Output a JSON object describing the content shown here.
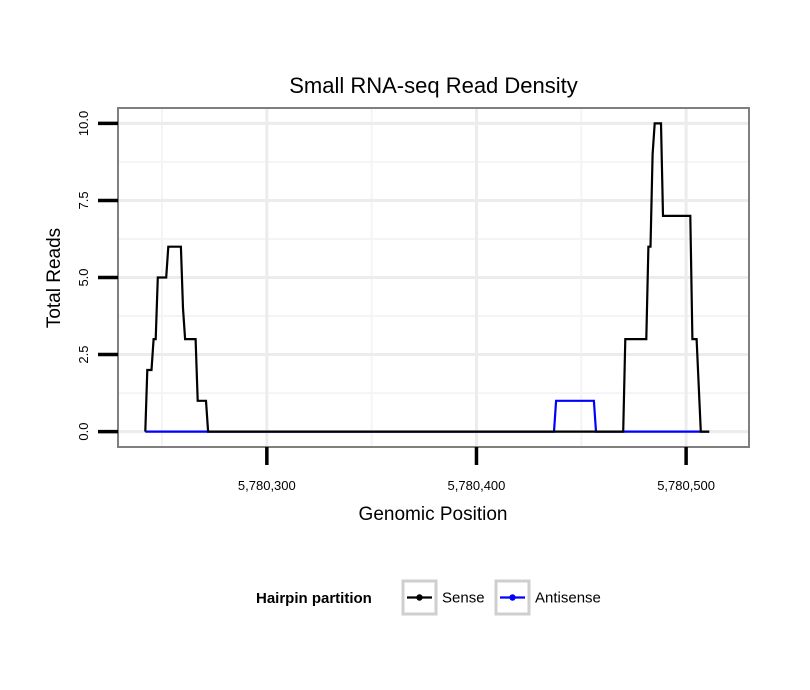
{
  "chart_data": {
    "type": "line",
    "title": "Small RNA-seq Read Density",
    "xlabel": "Genomic Position",
    "ylabel": "Total Reads",
    "xlim": [
      5780229,
      5780530
    ],
    "ylim": [
      -0.5,
      10.5
    ],
    "x_ticks": [
      {
        "value": 5780300,
        "label": "5,780,300"
      },
      {
        "value": 5780400,
        "label": "5,780,400"
      },
      {
        "value": 5780500,
        "label": "5,780,500"
      }
    ],
    "y_ticks": [
      {
        "value": 0,
        "label": "0.0"
      },
      {
        "value": 2.5,
        "label": "2.5"
      },
      {
        "value": 5,
        "label": "5.0"
      },
      {
        "value": 7.5,
        "label": "7.5"
      },
      {
        "value": 10,
        "label": "10.0"
      }
    ],
    "grid": true,
    "legend": {
      "title": "Hairpin partition",
      "position": "bottom"
    },
    "series": [
      {
        "name": "Sense",
        "color": "#000000",
        "points": [
          [
            5780242,
            0
          ],
          [
            5780243,
            2
          ],
          [
            5780245,
            2
          ],
          [
            5780246,
            3
          ],
          [
            5780247,
            3
          ],
          [
            5780248,
            5
          ],
          [
            5780252,
            5
          ],
          [
            5780253,
            6
          ],
          [
            5780259,
            6
          ],
          [
            5780260,
            4
          ],
          [
            5780261,
            3
          ],
          [
            5780266,
            3
          ],
          [
            5780267,
            1
          ],
          [
            5780271,
            1
          ],
          [
            5780272,
            0
          ],
          [
            5780470,
            0
          ],
          [
            5780471,
            3
          ],
          [
            5780481,
            3
          ],
          [
            5780482,
            6
          ],
          [
            5780483,
            6
          ],
          [
            5780484,
            9
          ],
          [
            5780485,
            10
          ],
          [
            5780488,
            10
          ],
          [
            5780489,
            7
          ],
          [
            5780502,
            7
          ],
          [
            5780503,
            3
          ],
          [
            5780505,
            3
          ],
          [
            5780507,
            0
          ],
          [
            5780511,
            0
          ]
        ]
      },
      {
        "name": "Antisense",
        "color": "#0000ff",
        "points": [
          [
            5780242,
            0
          ],
          [
            5780437,
            0
          ],
          [
            5780438,
            1
          ],
          [
            5780456,
            1
          ],
          [
            5780457,
            0
          ],
          [
            5780511,
            0
          ]
        ]
      }
    ]
  }
}
